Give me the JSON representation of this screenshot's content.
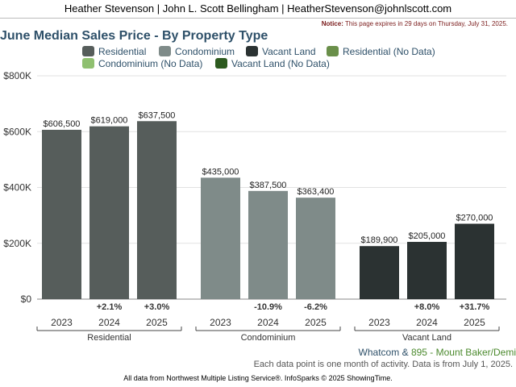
{
  "header": {
    "agent_line": "Heather Stevenson | John L. Scott Bellingham | HeatherStevenson@johnlscott.com"
  },
  "notice": {
    "label": "Notice:",
    "text": "This page expires in 29 days on Thursday, July 31, 2025."
  },
  "legend": {
    "items": [
      {
        "label": "Residential",
        "color": "#565d5b"
      },
      {
        "label": "Condominium",
        "color": "#7f8b89"
      },
      {
        "label": "Vacant Land",
        "color": "#2b3232"
      },
      {
        "label": "Residential (No Data)",
        "color": "#6a8f4a"
      },
      {
        "label": "Condominium (No Data)",
        "color": "#8fc070"
      },
      {
        "label": "Vacant Land (No Data)",
        "color": "#2d5a1f"
      }
    ]
  },
  "footer": {
    "location_county": "Whatcom",
    "location_amp": "&",
    "location_area": "895 - Mount Baker/Demi",
    "note": "Each data point is one month of activity. Data is from July 1, 2025.",
    "source": "All data from Northwest Multiple Listing Service®. InfoSparks © 2025 ShowingTime."
  },
  "chart_data": {
    "type": "bar",
    "title": "June Median Sales Price - By Property Type",
    "ylim": [
      0,
      800000
    ],
    "yticks": [
      0,
      200000,
      400000,
      600000,
      800000
    ],
    "ytick_labels": [
      "$0",
      "$200K",
      "$400K",
      "$600K",
      "$800K"
    ],
    "grid": true,
    "groups": [
      {
        "name": "Residential",
        "color": "#565d5b",
        "categories": [
          "2023",
          "2024",
          "2025"
        ],
        "values": [
          606500,
          619000,
          637500
        ],
        "value_labels": [
          "$606,500",
          "$619,000",
          "$637,500"
        ],
        "changes": [
          "",
          "+2.1%",
          "+3.0%"
        ]
      },
      {
        "name": "Condominium",
        "color": "#7f8b89",
        "categories": [
          "2023",
          "2024",
          "2025"
        ],
        "values": [
          435000,
          387500,
          363400
        ],
        "value_labels": [
          "$435,000",
          "$387,500",
          "$363,400"
        ],
        "changes": [
          "",
          "-10.9%",
          "-6.2%"
        ]
      },
      {
        "name": "Vacant Land",
        "color": "#2b3232",
        "categories": [
          "2023",
          "2024",
          "2025"
        ],
        "values": [
          189900,
          205000,
          270000
        ],
        "value_labels": [
          "$189,900",
          "$205,000",
          "$270,000"
        ],
        "changes": [
          "",
          "+8.0%",
          "+31.7%"
        ]
      }
    ]
  }
}
